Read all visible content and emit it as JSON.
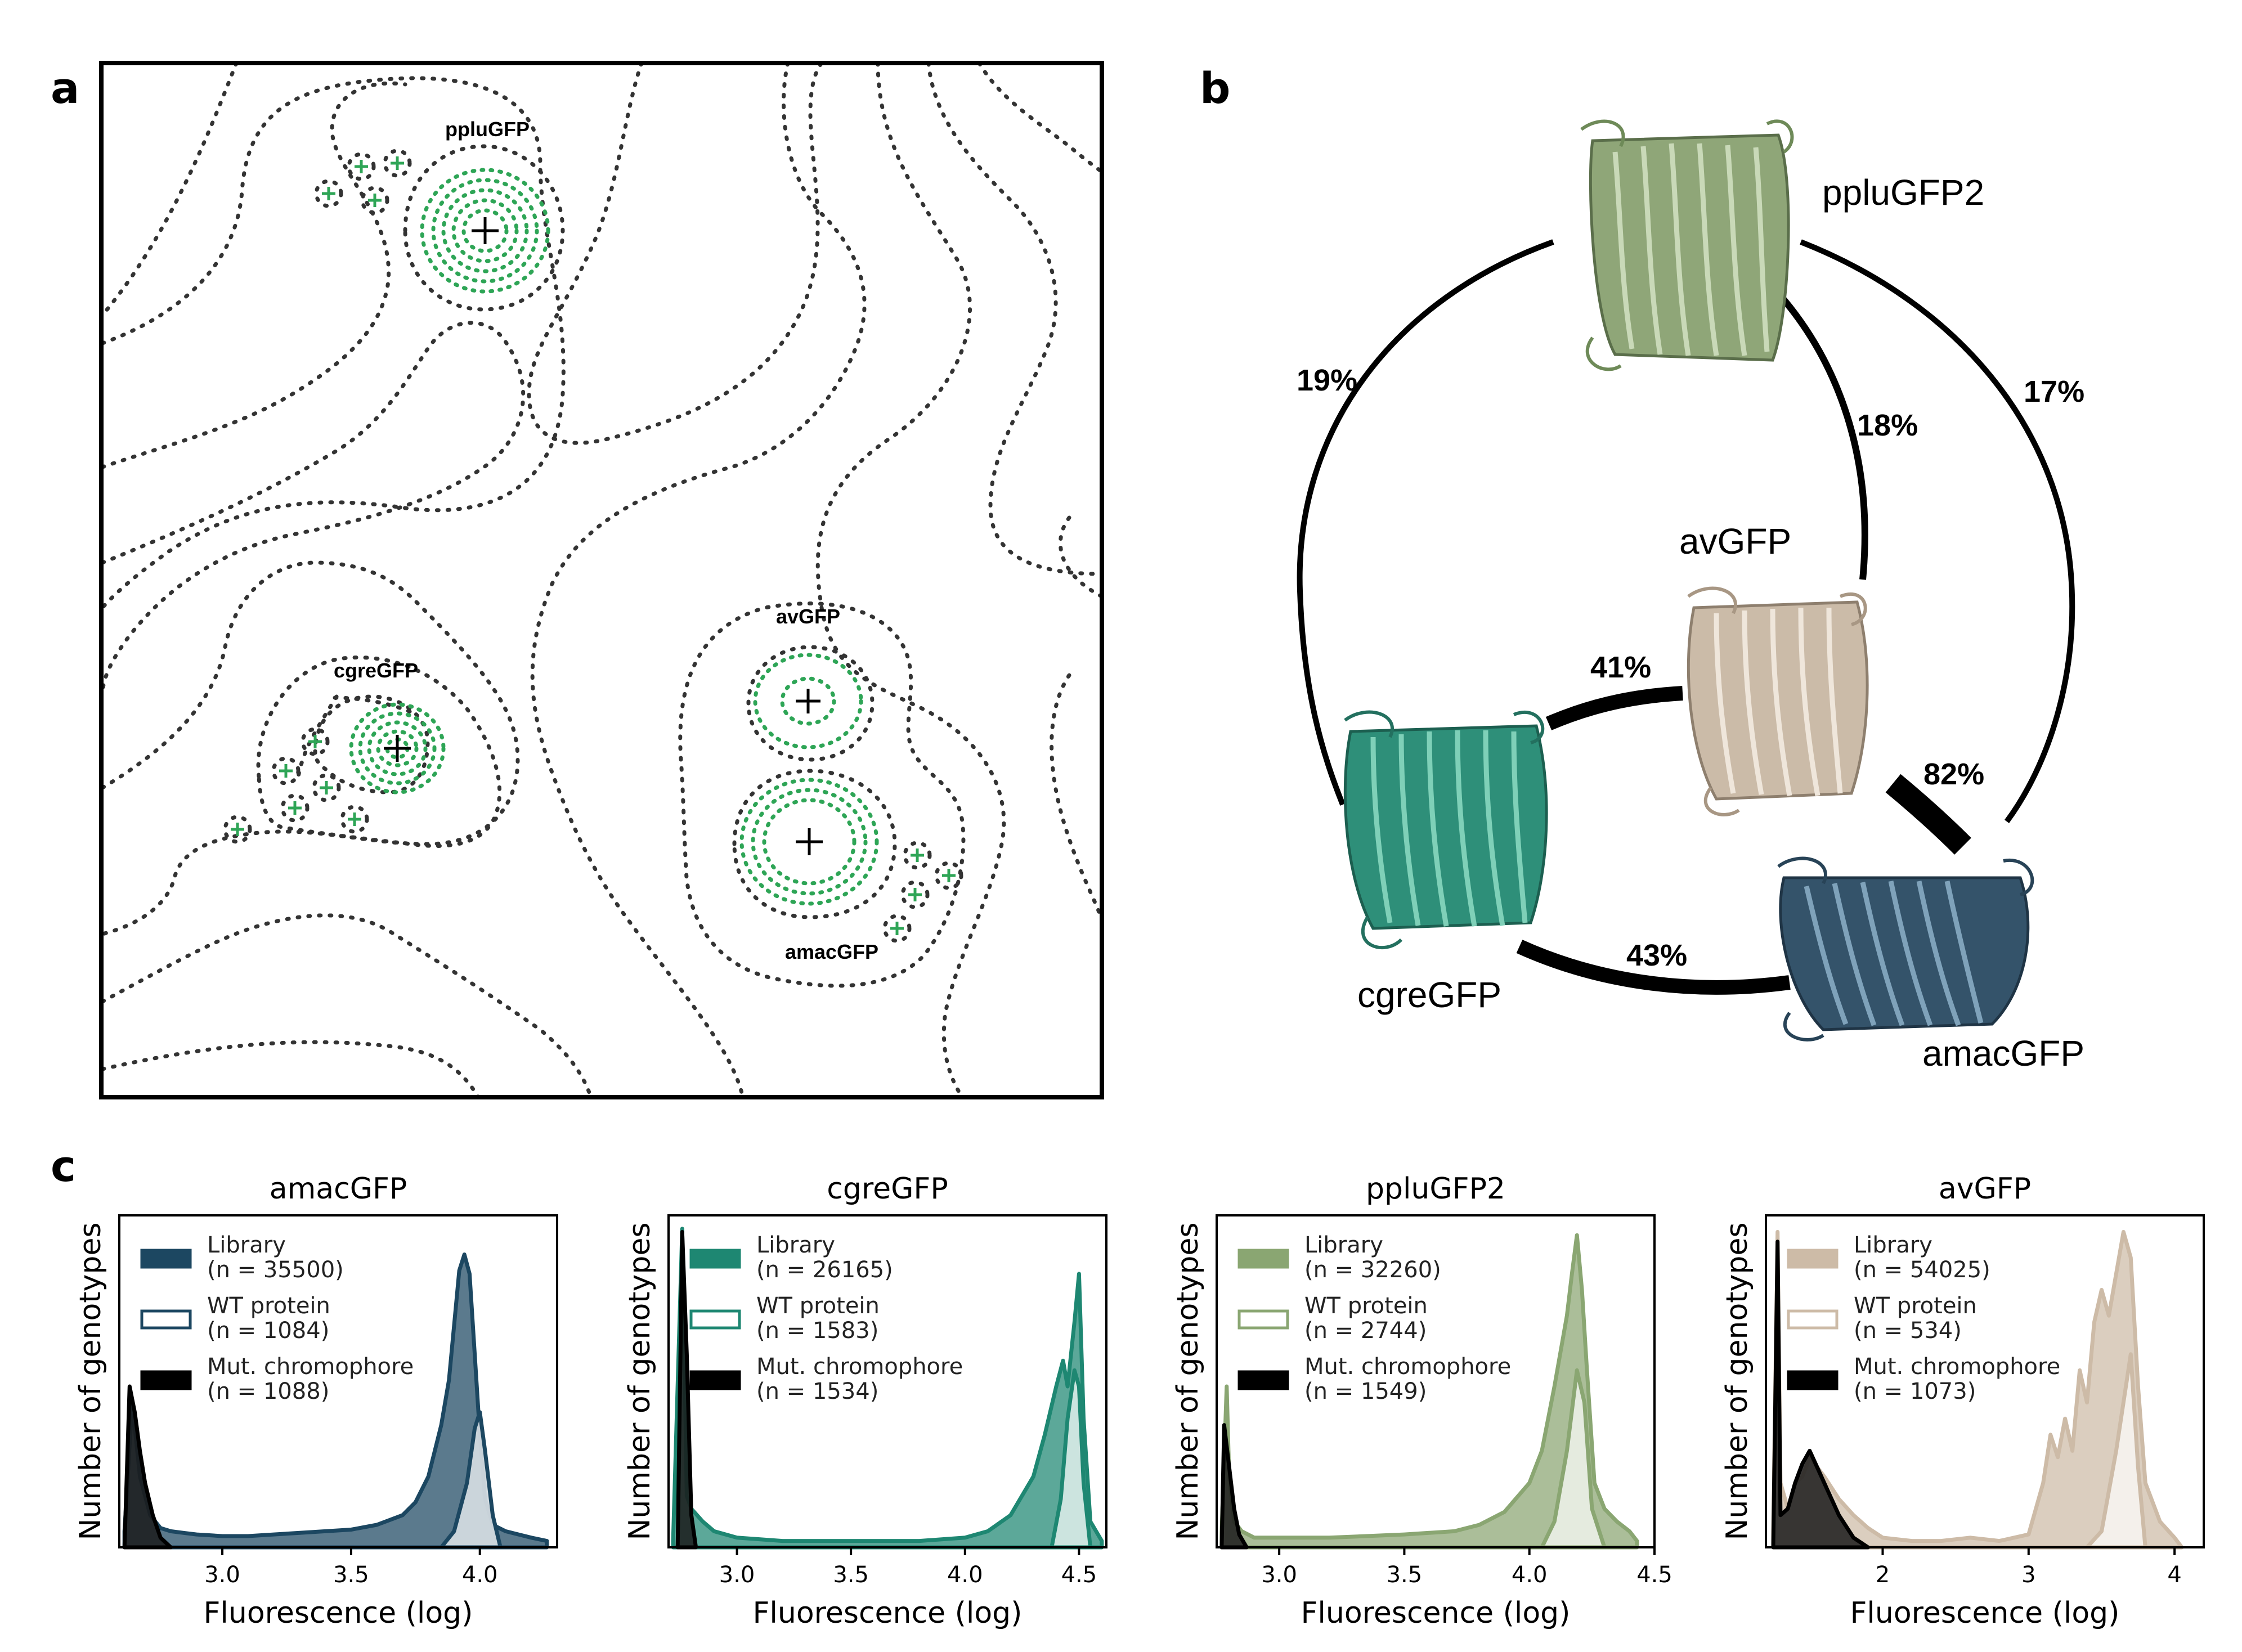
{
  "panels": {
    "a": "a",
    "b": "b",
    "c": "c"
  },
  "panel_a": {
    "labels": {
      "pplu": "ppluGFP",
      "cgre": "cgreGFP",
      "av": "avGFP",
      "amac": "amacGFP"
    },
    "colors": {
      "outer": "#333333",
      "inner": "#2ea556",
      "marker": "#000000"
    }
  },
  "panel_b": {
    "labels": {
      "pplu": "ppluGFP2",
      "av": "avGFP",
      "cgre": "cgreGFP",
      "amac": "amacGFP"
    },
    "identities": {
      "pplu_cgre": "19%",
      "pplu_av": "18%",
      "pplu_amac": "17%",
      "cgre_av": "41%",
      "av_amac": "82%",
      "cgre_amac": "43%"
    },
    "colors": {
      "pplu": "#8fa678",
      "av": "#cbbba8",
      "cgre": "#2e8f79",
      "amac": "#34536a"
    }
  },
  "chart_data": [
    {
      "type": "area",
      "title": "amacGFP",
      "xlabel": "Fluorescence (log)",
      "ylabel": "Number of genotypes",
      "xlim": [
        2.6,
        4.3
      ],
      "xticks": [
        "3.0",
        "3.5",
        "4.0"
      ],
      "xtick_values": [
        3.0,
        3.5,
        4.0
      ],
      "legend": "top-left",
      "series": [
        {
          "label": "Library",
          "n": "(n = 35500)",
          "color": "#1c4761",
          "x": [
            2.62,
            2.65,
            2.68,
            2.72,
            2.76,
            2.8,
            2.85,
            2.9,
            3.0,
            3.1,
            3.2,
            3.3,
            3.4,
            3.5,
            3.6,
            3.7,
            3.75,
            3.8,
            3.85,
            3.88,
            3.92,
            3.94,
            3.96,
            3.98,
            4.0,
            4.02,
            4.05,
            4.1,
            4.15,
            4.2,
            4.26
          ],
          "y": [
            0.05,
            0.45,
            0.22,
            0.1,
            0.06,
            0.05,
            0.045,
            0.04,
            0.035,
            0.035,
            0.04,
            0.045,
            0.05,
            0.055,
            0.07,
            0.1,
            0.14,
            0.22,
            0.38,
            0.52,
            0.86,
            0.91,
            0.85,
            0.6,
            0.35,
            0.15,
            0.07,
            0.05,
            0.04,
            0.03,
            0.02
          ]
        },
        {
          "label": "WT protein",
          "n": "(n = 1084)",
          "color": "#1c4761",
          "x": [
            3.85,
            3.9,
            3.95,
            3.98,
            4.0,
            4.02,
            4.05,
            4.08
          ],
          "y": [
            0.0,
            0.05,
            0.2,
            0.37,
            0.42,
            0.3,
            0.1,
            0.0
          ]
        },
        {
          "label": "Mut. chromophore",
          "n": "(n = 1088)",
          "color": "#000000",
          "x": [
            2.62,
            2.64,
            2.66,
            2.68,
            2.7,
            2.73,
            2.76,
            2.8
          ],
          "y": [
            0.0,
            0.5,
            0.42,
            0.3,
            0.2,
            0.1,
            0.03,
            0.0
          ]
        }
      ]
    },
    {
      "type": "area",
      "title": "cgreGFP",
      "xlabel": "Fluorescence (log)",
      "ylabel": "Number of genotypes",
      "xlim": [
        2.7,
        4.62
      ],
      "xticks": [
        "3.0",
        "3.5",
        "4.0",
        "4.5"
      ],
      "xtick_values": [
        3.0,
        3.5,
        4.0,
        4.5
      ],
      "legend": "top-left",
      "series": [
        {
          "label": "Library",
          "n": "(n = 26165)",
          "color": "#1e8772",
          "x": [
            2.72,
            2.76,
            2.78,
            2.8,
            2.85,
            2.9,
            3.0,
            3.2,
            3.5,
            3.8,
            4.0,
            4.1,
            4.2,
            4.3,
            4.35,
            4.4,
            4.43,
            4.45,
            4.48,
            4.5,
            4.52,
            4.55,
            4.6
          ],
          "y": [
            0.02,
            0.99,
            0.16,
            0.12,
            0.08,
            0.05,
            0.03,
            0.02,
            0.02,
            0.02,
            0.03,
            0.05,
            0.1,
            0.22,
            0.35,
            0.5,
            0.58,
            0.5,
            0.7,
            0.85,
            0.4,
            0.08,
            0.02
          ]
        },
        {
          "label": "WT protein",
          "n": "(n = 1583)",
          "color": "#1e8772",
          "x": [
            4.38,
            4.42,
            4.45,
            4.48,
            4.5,
            4.52,
            4.55
          ],
          "y": [
            0.0,
            0.15,
            0.4,
            0.55,
            0.5,
            0.2,
            0.0
          ]
        },
        {
          "label": "Mut. chromophore",
          "n": "(n = 1534)",
          "color": "#000000",
          "x": [
            2.74,
            2.76,
            2.78,
            2.8,
            2.82
          ],
          "y": [
            0.0,
            0.98,
            0.6,
            0.1,
            0.0
          ]
        }
      ]
    },
    {
      "type": "area",
      "title": "ppluGFP2",
      "xlabel": "Fluorescence (log)",
      "ylabel": "Number of genotypes",
      "xlim": [
        2.75,
        4.5
      ],
      "xticks": [
        "3.0",
        "3.5",
        "4.0",
        "4.5"
      ],
      "xtick_values": [
        3.0,
        3.5,
        4.0,
        4.5
      ],
      "legend": "top-left",
      "series": [
        {
          "label": "Library",
          "n": "(n = 32260)",
          "color": "#8aa672",
          "x": [
            2.77,
            2.79,
            2.8,
            2.82,
            2.85,
            2.9,
            3.0,
            3.2,
            3.5,
            3.7,
            3.8,
            3.9,
            4.0,
            4.05,
            4.1,
            4.15,
            4.17,
            4.19,
            4.21,
            4.23,
            4.26,
            4.3,
            4.35,
            4.4,
            4.43
          ],
          "y": [
            0.05,
            0.5,
            0.22,
            0.08,
            0.05,
            0.03,
            0.03,
            0.03,
            0.04,
            0.05,
            0.07,
            0.11,
            0.2,
            0.3,
            0.5,
            0.72,
            0.85,
            0.97,
            0.8,
            0.55,
            0.2,
            0.12,
            0.08,
            0.05,
            0.02
          ]
        },
        {
          "label": "WT protein",
          "n": "(n = 2744)",
          "color": "#8aa672",
          "x": [
            4.05,
            4.1,
            4.15,
            4.19,
            4.22,
            4.25,
            4.3
          ],
          "y": [
            0.0,
            0.08,
            0.3,
            0.55,
            0.45,
            0.12,
            0.0
          ]
        },
        {
          "label": "Mut. chromophore",
          "n": "(n = 1549)",
          "color": "#000000",
          "x": [
            2.77,
            2.78,
            2.8,
            2.82,
            2.84,
            2.87
          ],
          "y": [
            0.0,
            0.38,
            0.25,
            0.12,
            0.04,
            0.0
          ]
        }
      ]
    },
    {
      "type": "area",
      "title": "avGFP",
      "xlabel": "Fluorescence (log)",
      "ylabel": "Number of genotypes",
      "xlim": [
        1.2,
        4.2
      ],
      "xticks": [
        "2",
        "3",
        "4"
      ],
      "xtick_values": [
        2,
        3,
        4
      ],
      "legend": "top-left",
      "series": [
        {
          "label": "Library",
          "n": "(n = 54025)",
          "color": "#cdbba7",
          "x": [
            1.25,
            1.28,
            1.3,
            1.35,
            1.4,
            1.45,
            1.5,
            1.6,
            1.7,
            1.8,
            1.9,
            2.0,
            2.2,
            2.4,
            2.6,
            2.8,
            3.0,
            3.1,
            3.15,
            3.2,
            3.25,
            3.3,
            3.35,
            3.4,
            3.45,
            3.5,
            3.55,
            3.6,
            3.65,
            3.7,
            3.75,
            3.8,
            3.9,
            4.0,
            4.05
          ],
          "y": [
            0.05,
            0.98,
            0.2,
            0.12,
            0.2,
            0.22,
            0.28,
            0.22,
            0.15,
            0.1,
            0.06,
            0.03,
            0.02,
            0.02,
            0.03,
            0.02,
            0.04,
            0.2,
            0.35,
            0.28,
            0.4,
            0.3,
            0.55,
            0.45,
            0.7,
            0.8,
            0.72,
            0.85,
            0.98,
            0.9,
            0.5,
            0.2,
            0.08,
            0.03,
            0.0
          ]
        },
        {
          "label": "WT protein",
          "n": "(n = 534)",
          "color": "#cdbba7",
          "x": [
            3.4,
            3.5,
            3.6,
            3.7,
            3.75,
            3.8
          ],
          "y": [
            0.0,
            0.05,
            0.3,
            0.6,
            0.25,
            0.0
          ]
        },
        {
          "label": "Mut. chromophore",
          "n": "(n = 1073)",
          "color": "#000000",
          "x": [
            1.25,
            1.28,
            1.3,
            1.35,
            1.4,
            1.45,
            1.5,
            1.55,
            1.6,
            1.7,
            1.8,
            1.9
          ],
          "y": [
            0.0,
            0.95,
            0.1,
            0.12,
            0.2,
            0.26,
            0.3,
            0.25,
            0.2,
            0.1,
            0.03,
            0.0
          ]
        }
      ]
    }
  ]
}
